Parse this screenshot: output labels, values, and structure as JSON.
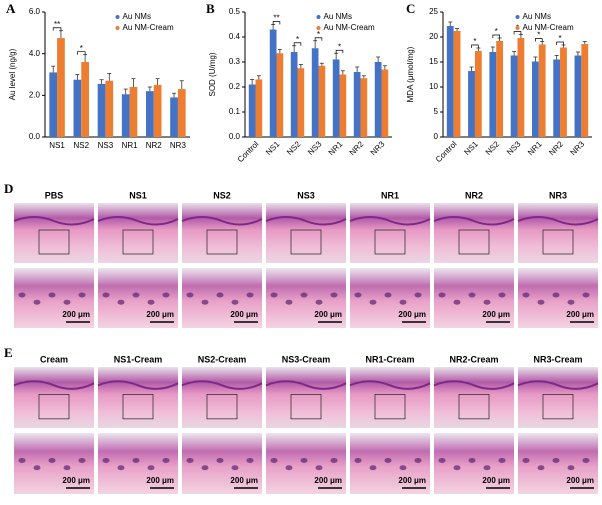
{
  "chart_data": [
    {
      "type": "bar",
      "label": "A",
      "ylabel": "Au level (ng/g)",
      "categories": [
        "NS1",
        "NS2",
        "NS3",
        "NR1",
        "NR2",
        "NR3"
      ],
      "series": [
        {
          "name": "Au NMs",
          "color": "#4472c4",
          "values": [
            3.1,
            2.75,
            2.55,
            2.05,
            2.2,
            1.9
          ],
          "errors": [
            0.3,
            0.25,
            0.2,
            0.25,
            0.2,
            0.2
          ]
        },
        {
          "name": "Au NM-Cream",
          "color": "#ed7d31",
          "values": [
            4.75,
            3.6,
            2.7,
            2.4,
            2.5,
            2.3
          ],
          "errors": [
            0.35,
            0.35,
            0.35,
            0.4,
            0.3,
            0.4
          ]
        }
      ],
      "annotations": [
        "**",
        "*",
        null,
        null,
        null,
        null
      ],
      "ylim": [
        0,
        6
      ],
      "yticks": [
        {
          "value": 0,
          "label": "0.0"
        },
        {
          "value": 2,
          "label": "2.0"
        },
        {
          "value": 4,
          "label": "4.0"
        },
        {
          "value": 6,
          "label": "6.0"
        }
      ],
      "legend": "upper right"
    },
    {
      "type": "bar",
      "label": "B",
      "ylabel": "SOD (U/mg)",
      "categories": [
        "Control",
        "NS1",
        "NS2",
        "NS3",
        "NR1",
        "NR2",
        "NR3"
      ],
      "series": [
        {
          "name": "Au NMs",
          "color": "#4472c4",
          "values": [
            0.21,
            0.43,
            0.34,
            0.355,
            0.31,
            0.26,
            0.3
          ],
          "errors": [
            0.02,
            0.02,
            0.025,
            0.03,
            0.025,
            0.02,
            0.02
          ]
        },
        {
          "name": "Au NM-Cream",
          "color": "#ed7d31",
          "values": [
            0.23,
            0.335,
            0.275,
            0.285,
            0.25,
            0.235,
            0.27
          ],
          "errors": [
            0.015,
            0.015,
            0.015,
            0.01,
            0.015,
            0.01,
            0.015
          ]
        }
      ],
      "annotations": [
        null,
        "**",
        "*",
        "*",
        "*",
        null,
        null
      ],
      "ylim": [
        0,
        0.5
      ],
      "yticks": [
        {
          "value": 0,
          "label": "0.0"
        },
        0.1,
        0.2,
        0.3,
        0.4,
        0.5
      ],
      "legend": "upper right"
    },
    {
      "type": "bar",
      "label": "C",
      "ylabel": "MDA (μmol/mg)",
      "categories": [
        "Control",
        "NS1",
        "NS2",
        "NS3",
        "NR1",
        "NR2",
        "NR3"
      ],
      "series": [
        {
          "name": "Au NMs",
          "color": "#4472c4",
          "values": [
            22.2,
            13.2,
            17,
            16.3,
            15.1,
            15.5,
            16.3
          ],
          "errors": [
            0.8,
            0.8,
            1,
            0.8,
            0.9,
            0.8,
            0.7
          ]
        },
        {
          "name": "Au NM-Cream",
          "color": "#ed7d31",
          "values": [
            21.2,
            17.2,
            19.2,
            19.8,
            18.5,
            17.9,
            18.6
          ],
          "errors": [
            0.5,
            0.6,
            0.6,
            0.7,
            0.6,
            0.5,
            0.5
          ]
        }
      ],
      "annotations": [
        null,
        "*",
        "*",
        "*",
        "*",
        "*",
        null
      ],
      "ylim": [
        0,
        25
      ],
      "yticks": [
        0,
        5,
        10,
        15,
        20,
        25
      ],
      "legend": "upper right"
    }
  ],
  "panel_d": {
    "label": "D",
    "columns": [
      "PBS",
      "NS1",
      "NS2",
      "NS3",
      "NR1",
      "NR2",
      "NR3"
    ]
  },
  "panel_e": {
    "label": "E",
    "columns": [
      "Cream",
      "NS1-Cream",
      "NS2-Cream",
      "NS3-Cream",
      "NR1-Cream",
      "NR2-Cream",
      "NR3-Cream"
    ]
  },
  "scale_bar": "200 μm"
}
